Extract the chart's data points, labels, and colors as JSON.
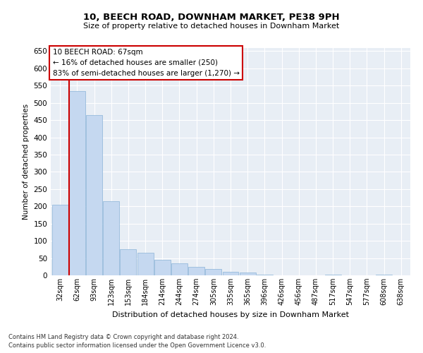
{
  "title": "10, BEECH ROAD, DOWNHAM MARKET, PE38 9PH",
  "subtitle": "Size of property relative to detached houses in Downham Market",
  "xlabel": "Distribution of detached houses by size in Downham Market",
  "ylabel": "Number of detached properties",
  "footnote1": "Contains HM Land Registry data © Crown copyright and database right 2024.",
  "footnote2": "Contains public sector information licensed under the Open Government Licence v3.0.",
  "annotation_title": "10 BEECH ROAD: 67sqm",
  "annotation_line1": "← 16% of detached houses are smaller (250)",
  "annotation_line2": "83% of semi-detached houses are larger (1,270) →",
  "bar_color": "#c5d8f0",
  "bar_edge_color": "#8ab4d8",
  "vline_color": "#cc0000",
  "bg_color": "#e8eef5",
  "annotation_box_color": "#ffffff",
  "annotation_box_edge": "#cc0000",
  "categories": [
    "32sqm",
    "62sqm",
    "93sqm",
    "123sqm",
    "153sqm",
    "184sqm",
    "214sqm",
    "244sqm",
    "274sqm",
    "305sqm",
    "335sqm",
    "365sqm",
    "396sqm",
    "426sqm",
    "456sqm",
    "487sqm",
    "517sqm",
    "547sqm",
    "577sqm",
    "608sqm",
    "638sqm"
  ],
  "values": [
    205,
    535,
    465,
    215,
    75,
    65,
    45,
    35,
    25,
    18,
    10,
    8,
    2,
    0,
    0,
    0,
    2,
    0,
    0,
    2,
    0
  ],
  "vline_x_index": 1,
  "ylim": [
    0,
    660
  ],
  "yticks": [
    0,
    50,
    100,
    150,
    200,
    250,
    300,
    350,
    400,
    450,
    500,
    550,
    600,
    650
  ]
}
